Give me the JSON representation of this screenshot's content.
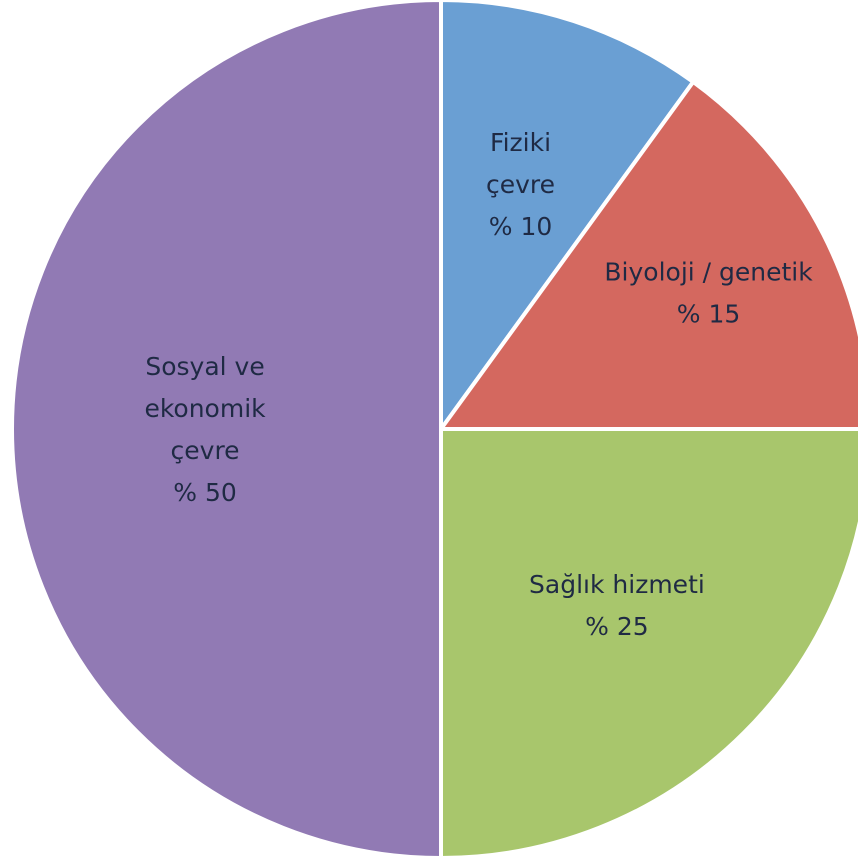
{
  "chart_data": {
    "type": "pie",
    "title": "",
    "start_angle_deg": 0,
    "direction": "clockwise",
    "legend": "none",
    "slices": [
      {
        "label_lines": [
          "Fiziki",
          "çevre",
          "% 10"
        ],
        "value": 10,
        "color": "#6a9fd3"
      },
      {
        "label_lines": [
          "Biyoloji / genetik",
          "% 15"
        ],
        "value": 15,
        "color": "#d4685f"
      },
      {
        "label_lines": [
          "Sağlık hizmeti",
          "% 25"
        ],
        "value": 25,
        "color": "#a8c66c"
      },
      {
        "label_lines": [
          "Sosyal ve",
          "ekonomik",
          "çevre",
          "% 50"
        ],
        "value": 50,
        "color": "#917ab4"
      }
    ]
  }
}
